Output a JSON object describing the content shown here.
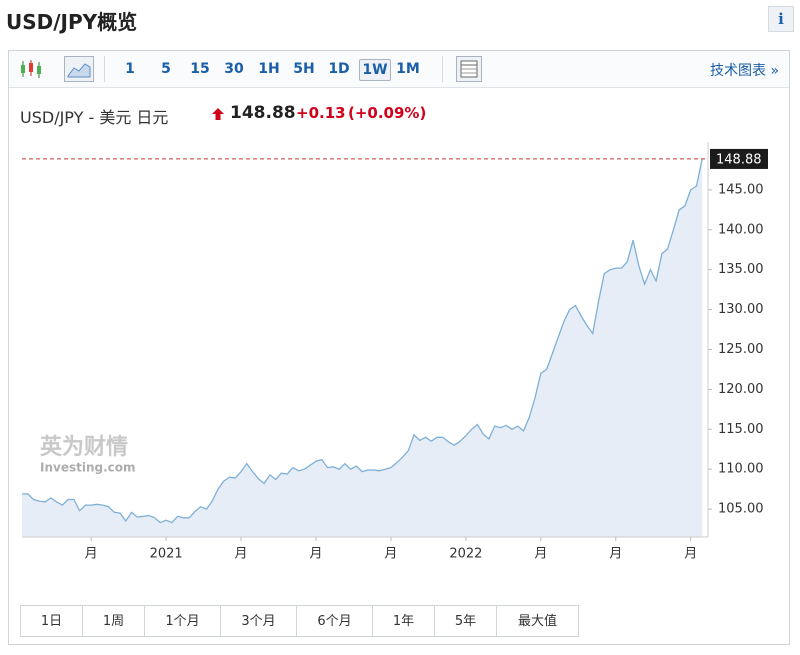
{
  "header": {
    "title": "USD/JPY概览",
    "info": "i"
  },
  "toolbar": {
    "intervals": [
      "1",
      "5",
      "15",
      "30",
      "1H",
      "5H",
      "1D",
      "1W",
      "1M"
    ],
    "selected_interval": 7,
    "tech_chart": "技术图表 »"
  },
  "quote": {
    "pair": "USD/JPY - 美元 日元",
    "price": "148.88",
    "change": "+0.13",
    "change_pct": "(+0.09%)"
  },
  "chart_data": {
    "type": "area",
    "color": "#7fb0d8",
    "fill": "#e6edf6",
    "watermark": [
      "英为财情",
      "Investing.com"
    ],
    "x": [
      0,
      1,
      2,
      3,
      4,
      5,
      6,
      7,
      8,
      9,
      10,
      11,
      12,
      13,
      14,
      15,
      16,
      17,
      18,
      19,
      20,
      21,
      22,
      23,
      24,
      25,
      26,
      27,
      28,
      29,
      30,
      31,
      32,
      33,
      34,
      35,
      36,
      37,
      38,
      39,
      40,
      41,
      42,
      43,
      44,
      45,
      46,
      47,
      48,
      49,
      50,
      51,
      52,
      53,
      54,
      55,
      56,
      57,
      58,
      59,
      60,
      61,
      62,
      63,
      64,
      65,
      66,
      67,
      68,
      69,
      70,
      71,
      72,
      73,
      74,
      75,
      76,
      77,
      78,
      79,
      80,
      81,
      82,
      83,
      84,
      85,
      86,
      87,
      88,
      89,
      90,
      91,
      92,
      93,
      94,
      95,
      96,
      97,
      98,
      99,
      100,
      101,
      102,
      103,
      104,
      105,
      106,
      107,
      108,
      109,
      110,
      111,
      112,
      113,
      114,
      115,
      116,
      117,
      118
    ],
    "values": [
      106.9,
      106.9,
      106.2,
      106.0,
      105.9,
      106.4,
      105.9,
      105.5,
      106.2,
      106.2,
      104.8,
      105.5,
      105.5,
      105.6,
      105.5,
      105.3,
      104.6,
      104.5,
      103.5,
      104.6,
      104.0,
      104.1,
      104.2,
      103.9,
      103.3,
      103.6,
      103.3,
      104.1,
      103.9,
      103.9,
      104.7,
      105.3,
      105.0,
      106.0,
      107.5,
      108.5,
      109.0,
      108.9,
      109.7,
      110.7,
      109.7,
      108.8,
      108.2,
      109.3,
      108.7,
      109.5,
      109.4,
      110.2,
      109.8,
      110.0,
      110.5,
      111.0,
      111.2,
      110.2,
      110.3,
      110.0,
      110.7,
      110.0,
      110.4,
      109.7,
      109.9,
      109.9,
      109.8,
      110.0,
      110.2,
      110.8,
      111.5,
      112.3,
      114.3,
      113.6,
      114.0,
      113.5,
      114.0,
      114.0,
      113.4,
      113.0,
      113.5,
      114.2,
      115.0,
      115.6,
      114.4,
      113.8,
      115.4,
      115.2,
      115.5,
      115.0,
      115.4,
      114.8,
      116.5,
      119.0,
      122.0,
      122.5,
      124.5,
      126.5,
      128.5,
      130.0,
      130.5,
      129.2,
      128.0,
      127.0,
      131.0,
      134.5,
      135.0,
      135.2,
      135.2,
      136.0,
      138.7,
      135.5,
      133.2,
      135.0,
      133.6,
      137.0,
      137.6,
      140.0,
      142.5,
      143.0,
      145.0,
      145.5,
      148.88
    ],
    "last_line_color": "#c0392b",
    "xlim": [
      0,
      119
    ],
    "xticks": [
      {
        "value": 12,
        "label": "月"
      },
      {
        "value": 25,
        "label": "2021"
      },
      {
        "value": 38,
        "label": "月"
      },
      {
        "value": 51,
        "label": "月"
      },
      {
        "value": 64,
        "label": "月"
      },
      {
        "value": 77,
        "label": "2022"
      },
      {
        "value": 90,
        "label": "月"
      },
      {
        "value": 103,
        "label": "月"
      },
      {
        "value": 116,
        "label": "月"
      }
    ],
    "ylim": [
      101.5,
      150
    ],
    "yticks": [
      {
        "value": 105,
        "label": "105.00"
      },
      {
        "value": 110,
        "label": "110.00"
      },
      {
        "value": 115,
        "label": "115.00"
      },
      {
        "value": 120,
        "label": "120.00"
      },
      {
        "value": 125,
        "label": "125.00"
      },
      {
        "value": 130,
        "label": "130.00"
      },
      {
        "value": 135,
        "label": "135.00"
      },
      {
        "value": 140,
        "label": "140.00"
      },
      {
        "value": 145,
        "label": "145.00"
      }
    ]
  },
  "ranges": [
    "1日",
    "1周",
    "1个月",
    "3个月",
    "6个月",
    "1年",
    "5年",
    "最大值"
  ]
}
